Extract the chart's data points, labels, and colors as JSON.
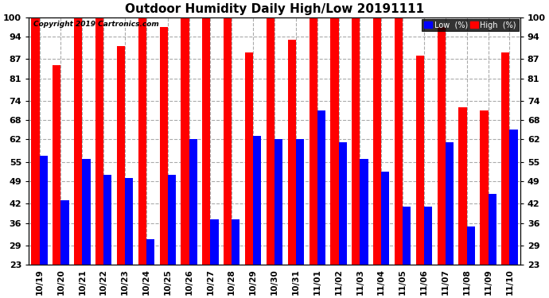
{
  "title": "Outdoor Humidity Daily High/Low 20191111",
  "copyright": "Copyright 2019 Cartronics.com",
  "dates": [
    "10/19",
    "10/20",
    "10/21",
    "10/22",
    "10/23",
    "10/24",
    "10/25",
    "10/26",
    "10/27",
    "10/28",
    "10/29",
    "10/30",
    "10/31",
    "11/01",
    "11/02",
    "11/03",
    "11/04",
    "11/05",
    "11/06",
    "11/07",
    "11/08",
    "11/09",
    "11/10"
  ],
  "high": [
    100,
    85,
    100,
    100,
    91,
    100,
    97,
    100,
    100,
    100,
    89,
    100,
    93,
    100,
    100,
    100,
    100,
    100,
    88,
    97,
    72,
    71,
    89
  ],
  "low": [
    57,
    43,
    56,
    51,
    50,
    31,
    51,
    62,
    37,
    37,
    63,
    62,
    62,
    71,
    61,
    56,
    52,
    41,
    41,
    61,
    35,
    45,
    65
  ],
  "ylim_min": 23,
  "ylim_max": 100,
  "yticks": [
    23,
    29,
    36,
    42,
    49,
    55,
    62,
    68,
    74,
    81,
    87,
    94,
    100
  ],
  "high_color": "#FF0000",
  "low_color": "#0000FF",
  "bg_color": "#FFFFFF",
  "grid_color": "#AAAAAA",
  "title_fontsize": 11,
  "legend_label_low": "Low  (%)",
  "legend_label_high": "High  (%)"
}
